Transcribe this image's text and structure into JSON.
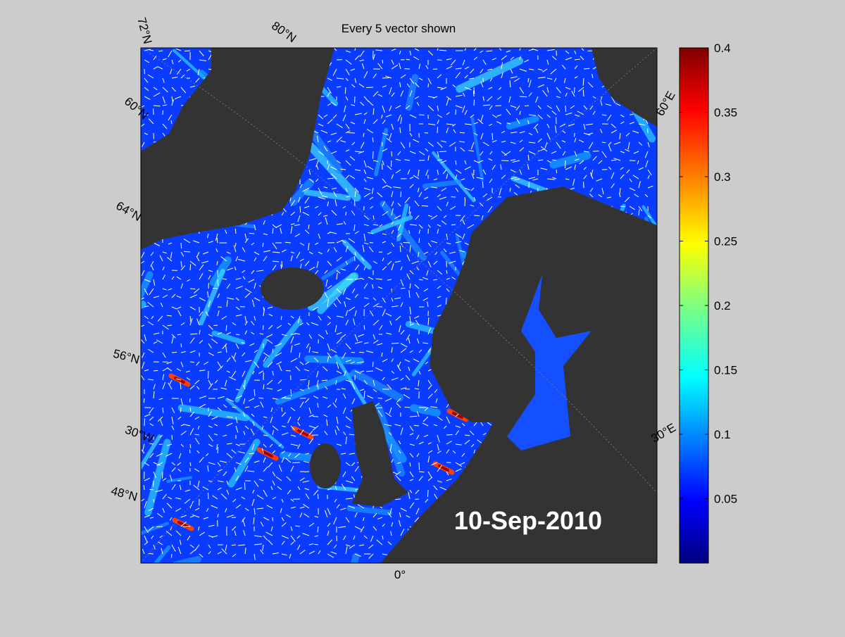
{
  "title": "Every 5 vector shown",
  "date": "10-Sep-2010",
  "map_labels": {
    "lat_72": "72°N",
    "lat_60": "60°N",
    "lat_64": "64°N",
    "lat_56": "56°N",
    "lon_30w": "30°W",
    "lat_48": "48°N",
    "lat_80": "80°N",
    "lon_0": "0°",
    "lon_60e": "60°E",
    "lon_30e": "30°E"
  },
  "colorbar": {
    "lim": [
      0,
      0.4
    ],
    "ticks": [
      0.05,
      0.1,
      0.15,
      0.2,
      0.25,
      0.3,
      0.35,
      0.4
    ]
  }
}
